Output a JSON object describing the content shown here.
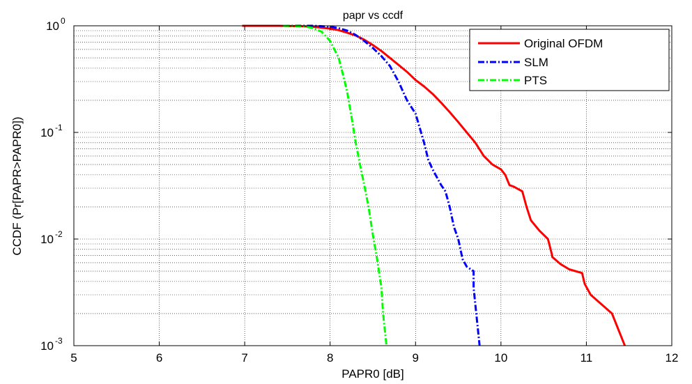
{
  "chart_data": {
    "type": "line",
    "title": "papr vs ccdf",
    "xlabel": "PAPR0 [dB]",
    "ylabel": "CCDF (Pr[PAPR>PAPR0])",
    "xlim": [
      5,
      12
    ],
    "ylim": [
      0.001,
      1
    ],
    "yscale": "log",
    "grid": true,
    "legend_position": "top-right",
    "x_ticks": [
      "5",
      "6",
      "7",
      "8",
      "9",
      "10",
      "11",
      "12"
    ],
    "y_ticks": [
      {
        "base": "10",
        "exp": "0"
      },
      {
        "base": "10",
        "exp": "-1"
      },
      {
        "base": "10",
        "exp": "-2"
      },
      {
        "base": "10",
        "exp": "-3"
      }
    ],
    "series": [
      {
        "name": "Original OFDM",
        "color": "#ff0000",
        "style": "solid",
        "x": [
          6.97,
          7.4,
          7.7,
          7.85,
          8.0,
          8.1,
          8.2,
          8.3,
          8.4,
          8.5,
          8.6,
          8.7,
          8.8,
          8.9,
          9.0,
          9.1,
          9.2,
          9.3,
          9.4,
          9.5,
          9.6,
          9.7,
          9.8,
          9.9,
          10.0,
          10.05,
          10.1,
          10.15,
          10.25,
          10.3,
          10.35,
          10.45,
          10.55,
          10.6,
          10.6,
          10.7,
          10.8,
          10.95,
          10.98,
          11.05,
          11.3,
          11.45
        ],
        "y": [
          1.0,
          1.0,
          0.99,
          0.97,
          0.94,
          0.91,
          0.86,
          0.81,
          0.74,
          0.66,
          0.58,
          0.5,
          0.43,
          0.37,
          0.31,
          0.27,
          0.23,
          0.19,
          0.155,
          0.125,
          0.1,
          0.08,
          0.06,
          0.05,
          0.045,
          0.04,
          0.032,
          0.031,
          0.028,
          0.02,
          0.015,
          0.012,
          0.01,
          0.007,
          0.0068,
          0.0058,
          0.0052,
          0.0048,
          0.0038,
          0.003,
          0.002,
          0.001
        ]
      },
      {
        "name": "SLM",
        "color": "#0000ff",
        "style": "dash-dot",
        "x": [
          7.45,
          7.8,
          8.0,
          8.1,
          8.2,
          8.3,
          8.4,
          8.5,
          8.6,
          8.7,
          8.8,
          8.9,
          9.0,
          9.05,
          9.1,
          9.15,
          9.2,
          9.25,
          9.3,
          9.35,
          9.4,
          9.45,
          9.5,
          9.55,
          9.6,
          9.68,
          9.68,
          9.75
        ],
        "y": [
          1.0,
          1.0,
          0.98,
          0.95,
          0.9,
          0.82,
          0.72,
          0.62,
          0.52,
          0.42,
          0.3,
          0.2,
          0.15,
          0.11,
          0.08,
          0.055,
          0.045,
          0.038,
          0.032,
          0.028,
          0.02,
          0.013,
          0.01,
          0.0065,
          0.0055,
          0.005,
          0.0035,
          0.001
        ]
      },
      {
        "name": "PTS",
        "color": "#00ff00",
        "style": "dash-dot",
        "x": [
          7.45,
          7.7,
          7.8,
          7.9,
          8.0,
          8.1,
          8.15,
          8.2,
          8.25,
          8.3,
          8.35,
          8.4,
          8.45,
          8.5,
          8.55,
          8.6,
          8.62,
          8.66
        ],
        "y": [
          1.0,
          0.99,
          0.95,
          0.88,
          0.72,
          0.5,
          0.35,
          0.24,
          0.14,
          0.08,
          0.05,
          0.032,
          0.02,
          0.011,
          0.0065,
          0.0035,
          0.002,
          0.001
        ]
      }
    ]
  }
}
